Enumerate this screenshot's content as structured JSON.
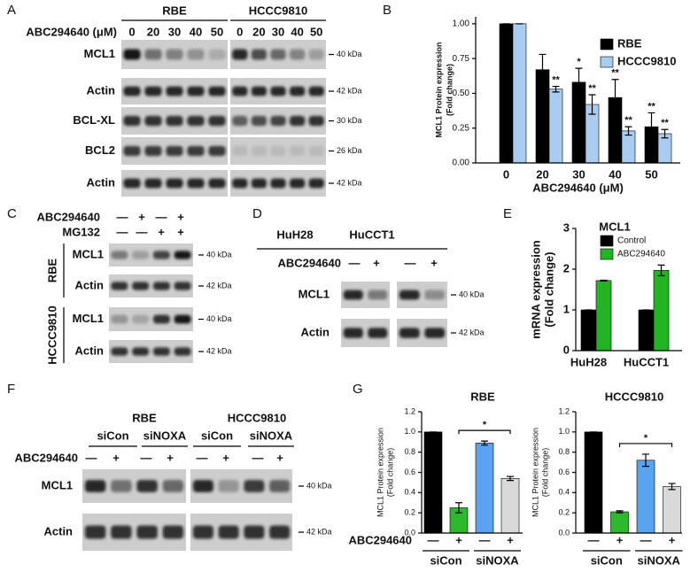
{
  "panel_labels": [
    "A",
    "B",
    "C",
    "D",
    "E",
    "F",
    "G"
  ],
  "blot_a": {
    "treatment": "ABC294640 (μM)",
    "groups": [
      {
        "name": "RBE",
        "lanes": [
          "0",
          "20",
          "30",
          "40",
          "50"
        ]
      },
      {
        "name": "HCCC9810",
        "lanes": [
          "0",
          "20",
          "30",
          "40",
          "50"
        ]
      }
    ],
    "rows": [
      {
        "name": "MCL1",
        "size": "40 kDa"
      },
      {
        "name": "Actin",
        "size": "42 kDa"
      },
      {
        "name": "BCL-XL",
        "size": "30 kDa"
      },
      {
        "name": "BCL2",
        "size": "26 kDa"
      },
      {
        "name": "Actin",
        "size": "42 kDa"
      }
    ]
  },
  "blot_c": {
    "treatments": [
      {
        "name": "ABC294640",
        "signs": [
          "—",
          "+",
          "—",
          "+"
        ]
      },
      {
        "name": "MG132",
        "signs": [
          "—",
          "—",
          "+",
          "+"
        ]
      }
    ],
    "cell_lines": [
      {
        "name": "RBE",
        "rows": [
          {
            "name": "MCL1",
            "size": "40 kDa"
          },
          {
            "name": "Actin",
            "size": "42 kDa"
          }
        ]
      },
      {
        "name": "HCCC9810",
        "rows": [
          {
            "name": "MCL1",
            "size": "40 kDa"
          },
          {
            "name": "Actin",
            "size": "42 kDa"
          }
        ]
      }
    ]
  },
  "blot_d": {
    "groups": [
      "HuH28",
      "HuCCT1"
    ],
    "treatment": "ABC294640",
    "signs": [
      "—",
      "+",
      "—",
      "+"
    ],
    "rows": [
      {
        "name": "MCL1",
        "size": "40 kDa"
      },
      {
        "name": "Actin",
        "size": "42 kDa"
      }
    ]
  },
  "blot_f": {
    "groups": [
      {
        "name": "RBE",
        "subgroups": [
          "siCon",
          "siNOXA"
        ]
      },
      {
        "name": "HCCC9810",
        "subgroups": [
          "siCon",
          "siNOXA"
        ]
      }
    ],
    "treatment": "ABC294640",
    "signs": [
      "—",
      "+",
      "—",
      "+",
      "—",
      "+",
      "—",
      "+"
    ],
    "rows": [
      {
        "name": "MCL1",
        "size": "40 kDa"
      },
      {
        "name": "Actin",
        "size": "42 kDa"
      }
    ]
  },
  "chart_data": [
    {
      "type": "bar",
      "y_label": [
        "MCL1 Protein expression",
        "(Fold change)"
      ],
      "x_label": "ABC294640 (μM)",
      "categories": [
        "0",
        "20",
        "30",
        "40",
        "50"
      ],
      "series": [
        {
          "name": "RBE",
          "color": "#000000",
          "values": [
            1,
            0.67,
            0.58,
            0.47,
            0.26
          ],
          "errors": [
            0,
            0.11,
            0.1,
            0.13,
            0.1
          ],
          "significance": [
            null,
            null,
            "*",
            "**",
            "**"
          ]
        },
        {
          "name": "HCCC9810",
          "color": "#a8cdf0",
          "values": [
            1,
            0.53,
            0.42,
            0.23,
            0.21
          ],
          "errors": [
            0,
            0.02,
            0.07,
            0.03,
            0.03
          ],
          "significance": [
            null,
            "**",
            "**",
            "**",
            "**"
          ]
        }
      ],
      "ylim": [
        0,
        1.05
      ],
      "yticks": [
        {
          "value": 0,
          "label": "0.00"
        },
        0.25,
        {
          "value": 0.5,
          "label": "0.50"
        },
        0.75,
        {
          "value": 1,
          "label": "1.00"
        }
      ],
      "legend": "top-right"
    },
    {
      "type": "bar",
      "title": "MCL1",
      "y_label": [
        "mRNA expression",
        "(Fold change)"
      ],
      "categories": [
        "HuH28",
        "HuCCT1"
      ],
      "series": [
        {
          "name": "Control",
          "color": "#000000",
          "values": [
            1,
            1
          ],
          "errors": [
            0,
            0
          ]
        },
        {
          "name": "ABC294640",
          "color": "#22b422",
          "values": [
            1.72,
            1.97
          ],
          "errors": [
            0.01,
            0.13
          ]
        }
      ],
      "ylim": [
        0,
        3
      ],
      "yticks": [
        0,
        1,
        2,
        3
      ],
      "legend": "top-left"
    },
    {
      "type": "bar",
      "title": "RBE",
      "y_label": [
        "MCL1 Protein expression",
        "(Fold change)"
      ],
      "treatment_label": "ABC294640",
      "categories": [
        "—",
        "+",
        "—",
        "+"
      ],
      "groups": [
        "siCon",
        "siNOXA"
      ],
      "values": [
        1,
        0.25,
        0.89,
        0.54
      ],
      "errors": [
        0,
        0.05,
        0.02,
        0.02
      ],
      "colors": [
        "#000000",
        "#2db82d",
        "#5aa3f0",
        "#d9d9d9"
      ],
      "significance": "*",
      "ylim": [
        0,
        1.2
      ],
      "yticks": [
        {
          "value": 0,
          "label": "0.0"
        },
        0.2,
        0.4,
        0.6,
        0.8,
        {
          "value": 1,
          "label": "1.0"
        },
        1.2
      ]
    },
    {
      "type": "bar",
      "title": "HCCC9810",
      "y_label": [
        "MCL1 Protein expression",
        "(Fold change)"
      ],
      "categories": [
        "—",
        "+",
        "—",
        "+"
      ],
      "groups": [
        "siCon",
        "siNOXA"
      ],
      "values": [
        1,
        0.21,
        0.72,
        0.46
      ],
      "errors": [
        0,
        0.01,
        0.06,
        0.03
      ],
      "colors": [
        "#000000",
        "#2db82d",
        "#5aa3f0",
        "#d9d9d9"
      ],
      "significance": "*",
      "ylim": [
        0,
        1.2
      ],
      "yticks": [
        {
          "value": 0,
          "label": "0.0"
        },
        0.2,
        0.4,
        0.6,
        0.8,
        {
          "value": 1,
          "label": "1.0"
        },
        1.2
      ]
    }
  ]
}
